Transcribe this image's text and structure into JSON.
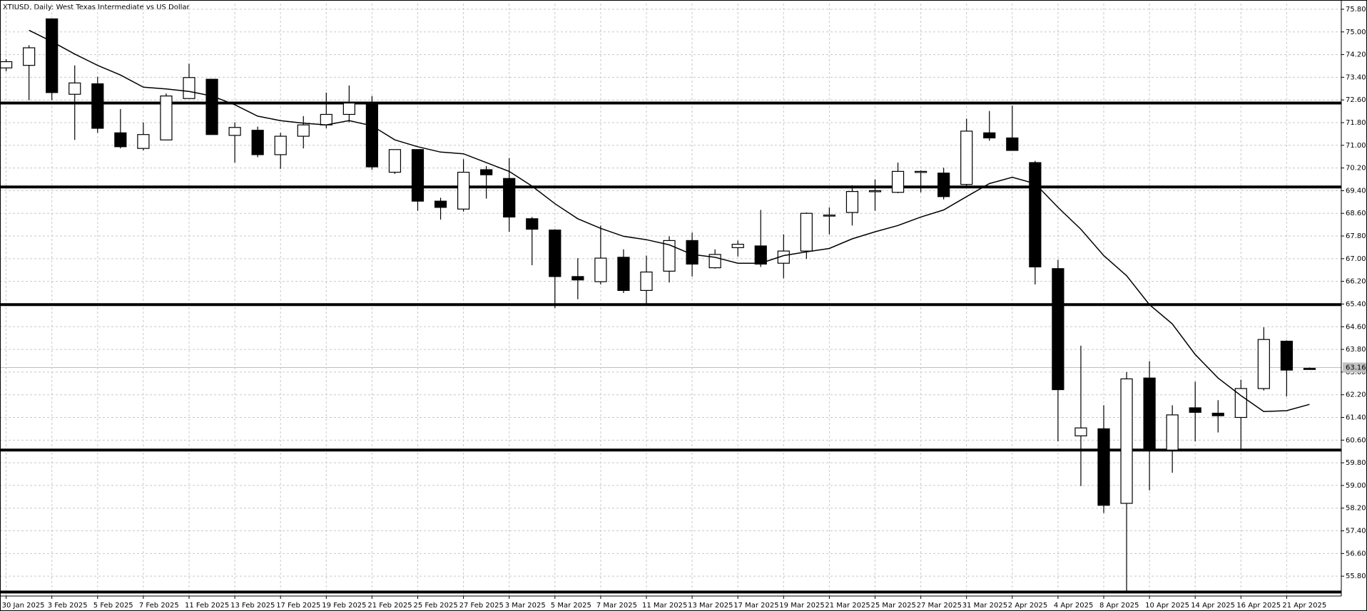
{
  "chart_data": {
    "type": "candlestick",
    "title": "XTIUSD, Daily:  West Texas Intermediate vs US Dollar",
    "categories": [
      "30 Jan 2025",
      null,
      "3 Feb 2025",
      null,
      "5 Feb 2025",
      null,
      "7 Feb 2025",
      null,
      "11 Feb 2025",
      null,
      "13 Feb 2025",
      null,
      "17 Feb 2025",
      null,
      "19 Feb 2025",
      null,
      "21 Feb 2025",
      null,
      "25 Feb 2025",
      null,
      "27 Feb 2025",
      null,
      "3 Mar 2025",
      null,
      "5 Mar 2025",
      null,
      "7 Mar 2025",
      null,
      "11 Mar 2025",
      null,
      "13 Mar 2025",
      null,
      "17 Mar 2025",
      null,
      "19 Mar 2025",
      null,
      "21 Mar 2025",
      null,
      "25 Mar 2025",
      null,
      "27 Mar 2025",
      null,
      "31 Mar 2025",
      null,
      "2 Apr 2025",
      null,
      "4 Apr 2025",
      null,
      "8 Apr 2025",
      null,
      "10 Apr 2025",
      null,
      "14 Apr 2025",
      null,
      "16 Apr 2025",
      null,
      "21 Apr 2025",
      null
    ],
    "open": [
      73.73,
      73.82,
      75.46,
      72.8,
      73.17,
      71.44,
      70.89,
      71.19,
      72.65,
      73.33,
      71.35,
      71.53,
      70.67,
      71.32,
      71.72,
      72.09,
      72.46,
      70.05,
      70.85,
      69.03,
      68.75,
      70.14,
      69.83,
      68.41,
      68.01,
      66.37,
      66.19,
      67.05,
      65.88,
      66.56,
      67.64,
      66.68,
      67.39,
      67.45,
      66.84,
      67.27,
      68.51,
      68.63,
      69.37,
      69.34,
      70.05,
      70.02,
      69.62,
      71.44,
      71.26,
      70.39,
      66.65,
      60.75,
      61.0,
      58.37,
      62.79,
      60.25,
      61.74,
      61.55,
      61.4,
      62.42,
      64.09,
      63.13
    ],
    "high": [
      74.04,
      74.53,
      75.46,
      73.82,
      73.42,
      72.28,
      71.81,
      72.83,
      73.88,
      73.33,
      71.81,
      71.66,
      71.44,
      72.03,
      72.86,
      73.11,
      72.74,
      70.85,
      70.85,
      69.15,
      70.51,
      70.27,
      70.55,
      68.47,
      68.04,
      67.02,
      68.17,
      67.33,
      67.11,
      67.79,
      67.92,
      67.33,
      67.64,
      68.72,
      67.86,
      68.63,
      68.81,
      69.59,
      69.8,
      70.39,
      70.11,
      70.21,
      71.94,
      72.21,
      72.4,
      70.45,
      66.96,
      63.93,
      61.83,
      63.0,
      63.38,
      61.83,
      62.66,
      62.01,
      62.73,
      64.58,
      64.12,
      63.16
    ],
    "low": [
      73.61,
      72.59,
      72.59,
      71.19,
      71.44,
      70.89,
      70.82,
      71.19,
      72.65,
      71.38,
      70.39,
      70.58,
      70.17,
      70.89,
      71.6,
      71.81,
      70.14,
      69.99,
      68.69,
      68.38,
      68.66,
      69.12,
      67.95,
      66.77,
      65.26,
      65.57,
      66.09,
      65.79,
      65.35,
      66.16,
      66.37,
      66.65,
      67.08,
      66.71,
      66.31,
      66.99,
      67.86,
      68.17,
      68.69,
      69.31,
      69.34,
      69.09,
      69.53,
      71.16,
      70.82,
      66.09,
      60.56,
      58.98,
      58.03,
      55.28,
      58.83,
      59.45,
      60.56,
      60.87,
      60.25,
      62.35,
      62.14,
      63.1
    ],
    "close": [
      73.95,
      74.44,
      72.86,
      73.2,
      71.6,
      70.95,
      71.38,
      72.74,
      73.39,
      71.38,
      71.63,
      70.67,
      71.32,
      71.72,
      72.09,
      72.49,
      70.24,
      70.85,
      69.03,
      68.81,
      70.05,
      69.96,
      68.47,
      68.04,
      66.37,
      66.25,
      67.02,
      65.88,
      66.53,
      67.64,
      66.81,
      67.15,
      67.51,
      66.81,
      67.27,
      68.6,
      68.54,
      69.37,
      69.4,
      70.08,
      70.08,
      69.19,
      71.5,
      71.26,
      70.82,
      66.71,
      62.38,
      61.03,
      58.3,
      62.76,
      60.22,
      61.49,
      61.58,
      61.46,
      62.42,
      64.15,
      63.07,
      63.12
    ],
    "ma": [
      null,
      75.06,
      74.66,
      74.22,
      73.82,
      73.48,
      73.05,
      72.99,
      72.9,
      72.74,
      72.43,
      72.03,
      71.87,
      71.78,
      71.72,
      71.87,
      71.69,
      71.19,
      70.95,
      70.76,
      70.7,
      70.39,
      70.08,
      69.56,
      68.94,
      68.41,
      68.07,
      67.79,
      67.67,
      67.49,
      67.15,
      67.05,
      66.84,
      66.84,
      67.11,
      67.24,
      67.36,
      67.7,
      67.95,
      68.17,
      68.47,
      68.72,
      69.19,
      69.65,
      69.87,
      69.65,
      68.81,
      68.04,
      67.11,
      66.4,
      65.38,
      64.7,
      63.62,
      62.79,
      62.17,
      61.61,
      61.64,
      61.86
    ],
    "levels": [
      72.49,
      69.53,
      65.38,
      60.25,
      55.24
    ],
    "last_price": 63.16,
    "up_color": "#ffffff",
    "down_color": "#000000",
    "line_color": "#000000",
    "grid": true,
    "ylim": [
      55.1,
      76.0
    ],
    "yticks": [
      {
        "value": 55.8,
        "label": "55.80"
      },
      {
        "value": 56.6,
        "label": "56.60"
      },
      {
        "value": 57.4,
        "label": "57.40"
      },
      {
        "value": 58.2,
        "label": "58.20"
      },
      {
        "value": 59.0,
        "label": "59.00"
      },
      {
        "value": 59.8,
        "label": "59.80"
      },
      {
        "value": 60.6,
        "label": "60.60"
      },
      {
        "value": 61.4,
        "label": "61.40"
      },
      {
        "value": 62.2,
        "label": "62.20"
      },
      {
        "value": 63.0,
        "label": "63.00"
      },
      {
        "value": 63.8,
        "label": "63.80"
      },
      {
        "value": 64.6,
        "label": "64.60"
      },
      {
        "value": 65.4,
        "label": "65.40"
      },
      {
        "value": 66.2,
        "label": "66.20"
      },
      {
        "value": 67.0,
        "label": "67.00"
      },
      {
        "value": 67.8,
        "label": "67.80"
      },
      {
        "value": 68.6,
        "label": "68.60"
      },
      {
        "value": 69.4,
        "label": "69.40"
      },
      {
        "value": 70.2,
        "label": "70.20"
      },
      {
        "value": 71.0,
        "label": "71.00"
      },
      {
        "value": 71.8,
        "label": "71.80"
      },
      {
        "value": 72.6,
        "label": "72.60"
      },
      {
        "value": 73.4,
        "label": "73.40"
      },
      {
        "value": 74.2,
        "label": "74.20"
      },
      {
        "value": 75.0,
        "label": "75.00"
      },
      {
        "value": 75.8,
        "label": "75.80"
      }
    ]
  }
}
